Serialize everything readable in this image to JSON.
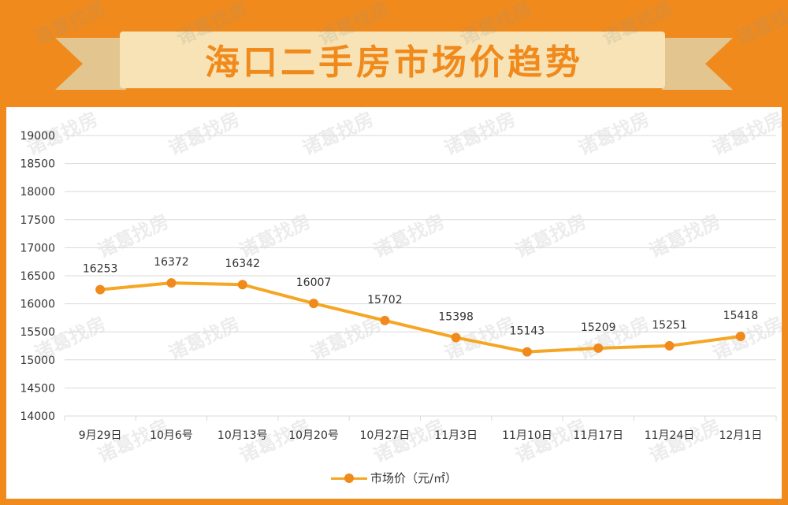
{
  "title": "海口二手房市场价趋势",
  "watermark": "诸葛找房",
  "colors": {
    "frame": "#f08a1c",
    "ribbon": "#f7e3b5",
    "ribbon_dark": "#e3c58f",
    "title": "#f08a1c",
    "line": "#f5a623",
    "marker": "#f08a1c",
    "grid": "#d9d9d9"
  },
  "chart_data": {
    "type": "line",
    "categories": [
      "9月29日",
      "10月6号",
      "10月13号",
      "10月20号",
      "10月27日",
      "11月3日",
      "11月10日",
      "11月17日",
      "11月24日",
      "12月1日"
    ],
    "series": [
      {
        "name": "市场价（元/㎡）",
        "values": [
          16253,
          16372,
          16342,
          16007,
          15702,
          15398,
          15143,
          15209,
          15251,
          15418
        ]
      }
    ],
    "data_labels": [
      "16253",
      "16372",
      "16342",
      "16007",
      "15702",
      "15398",
      "15143",
      "15209",
      "15251",
      "15418"
    ],
    "ylim": [
      14000,
      19000
    ],
    "y_ticks": [
      "14000",
      "14500",
      "15000",
      "15500",
      "16000",
      "16500",
      "17000",
      "17500",
      "18000",
      "18500",
      "19000"
    ],
    "grid": true,
    "legend_position": "bottom"
  },
  "legend": {
    "label": "市场价（元/㎡）"
  }
}
